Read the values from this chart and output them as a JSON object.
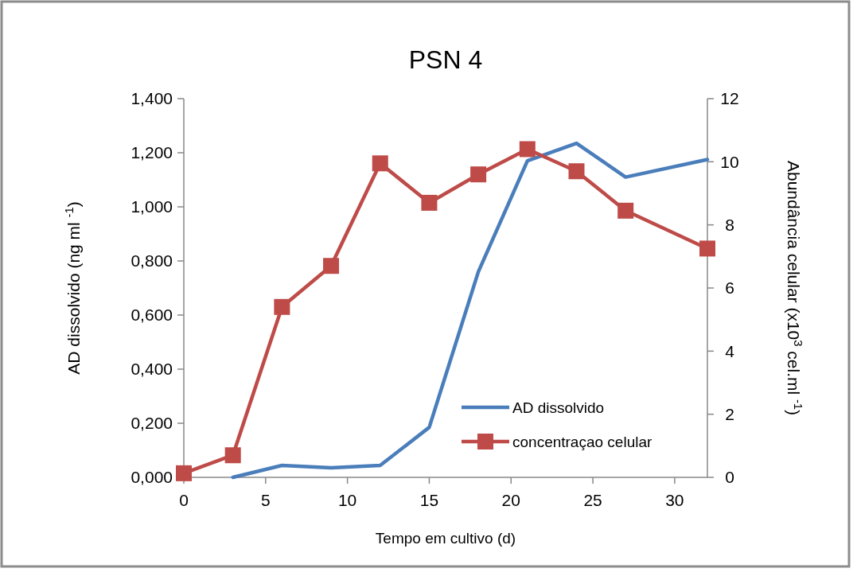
{
  "chart_data": {
    "type": "line",
    "title": "PSN 4",
    "xlabel": "Tempo em cultivo (d)",
    "ylabel": "AD dissolvido (ng ml $^{-1}$)",
    "y2label": "Abundância celular (x10$^{3}$ cel.ml $^{-1}$)",
    "x": [
      0,
      3,
      6,
      9,
      12,
      15,
      18,
      21,
      24,
      27,
      32
    ],
    "xlim": [
      0,
      32
    ],
    "xticks": [
      0,
      5,
      10,
      15,
      20,
      25,
      30
    ],
    "ylim": [
      0,
      1.4
    ],
    "yticks": [
      {
        "value": 0,
        "label": "0,000"
      },
      {
        "value": 0.2,
        "label": "0,200"
      },
      {
        "value": 0.4,
        "label": "0,400"
      },
      {
        "value": 0.6,
        "label": "0,600"
      },
      {
        "value": 0.8,
        "label": "0,800"
      },
      {
        "value": 1.0,
        "label": "1,000"
      },
      {
        "value": 1.2,
        "label": "1,200"
      },
      {
        "value": 1.4,
        "label": "1,400"
      }
    ],
    "y2lim": [
      0,
      12
    ],
    "y2ticks": [
      0,
      2,
      4,
      6,
      8,
      10,
      12
    ],
    "series": [
      {
        "name": "AD dissolvido",
        "color": "#4a7ebb",
        "marker": "none",
        "values": [
          null,
          0.0,
          0.044,
          0.035,
          0.044,
          0.185,
          0.76,
          1.17,
          1.235,
          1.11,
          1.175
        ]
      },
      {
        "name": "concentraçao celular",
        "color": "#be4b48",
        "marker": "square",
        "axis": "y2",
        "values": [
          0.13,
          0.7,
          5.4,
          6.7,
          9.95,
          8.7,
          9.6,
          10.4,
          9.7,
          8.45,
          7.25
        ]
      }
    ],
    "grid": false,
    "legend": "bottom right"
  }
}
